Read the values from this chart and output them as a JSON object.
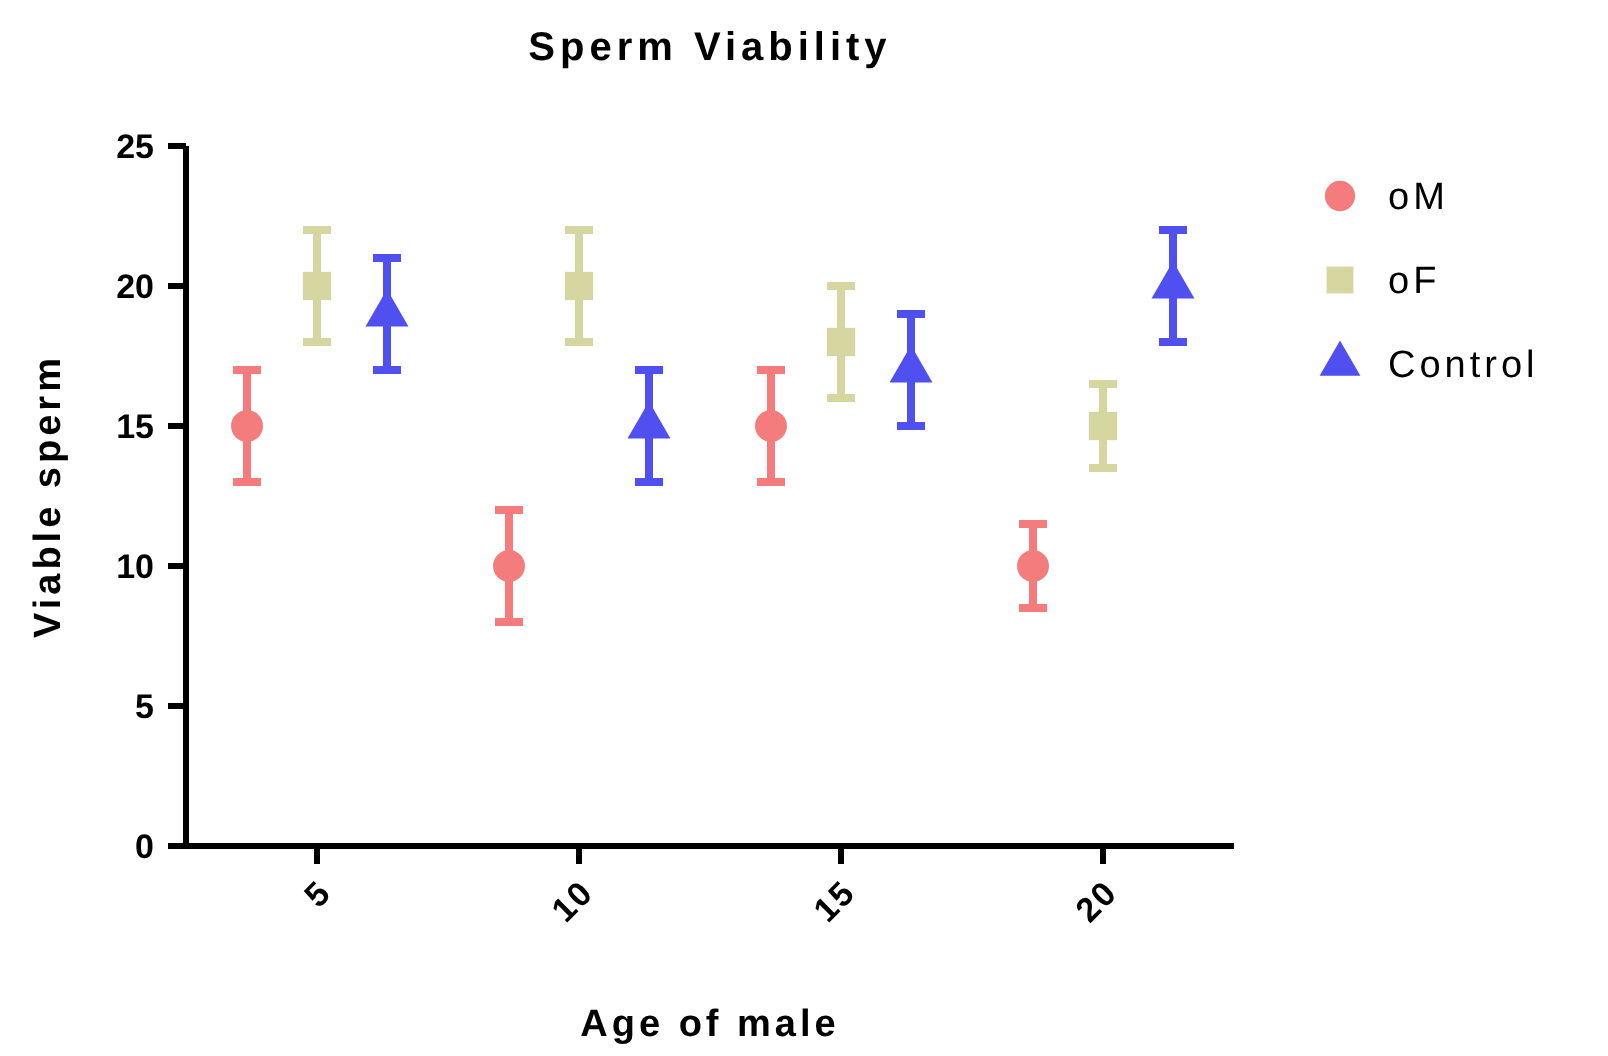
{
  "chart_data": {
    "type": "scatter",
    "title": "Sperm Viability",
    "xlabel": "Age of male",
    "ylabel": "Viable sperm",
    "categories": [
      "5",
      "10",
      "15",
      "20"
    ],
    "ylim": [
      0,
      25
    ],
    "yticks": [
      0,
      5,
      10,
      15,
      20,
      25
    ],
    "grid": false,
    "legend": "right",
    "series": [
      {
        "name": "oM",
        "color": "#f47c7c",
        "marker": "circle",
        "x": [
          "5",
          "10",
          "15",
          "20"
        ],
        "values": [
          15,
          10,
          15,
          10
        ],
        "errors": [
          2,
          2,
          2,
          1.5
        ]
      },
      {
        "name": "oF",
        "color": "#d6d6a0",
        "marker": "square",
        "x": [
          "5",
          "10",
          "15",
          "20"
        ],
        "values": [
          20,
          20,
          18,
          15
        ],
        "errors": [
          2,
          2,
          2,
          1.5
        ]
      },
      {
        "name": "Control",
        "color": "#5050f0",
        "marker": "triangle",
        "x": [
          "5",
          "10",
          "15",
          "20"
        ],
        "values": [
          19,
          15,
          17,
          20
        ],
        "errors": [
          2,
          2,
          2,
          2
        ]
      }
    ]
  }
}
